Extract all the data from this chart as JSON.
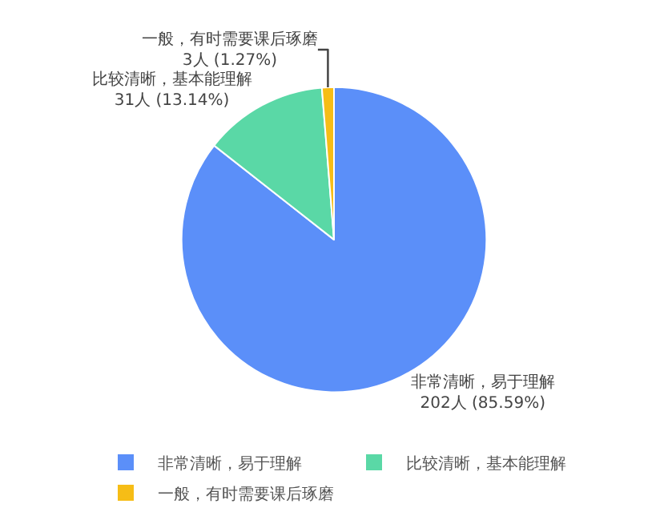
{
  "chart_data": {
    "type": "pie",
    "categories": [
      "非常清晰，易于理解",
      "比较清晰，基本能理解",
      "一般，有时需要课后琢磨"
    ],
    "values": [
      202,
      31,
      3
    ],
    "value_labels": [
      "202人 (85.59%)",
      "31人 (13.14%)",
      "3人 (1.27%)"
    ],
    "colors": [
      "#5b8ff9",
      "#5ad8a6",
      "#f6bd16"
    ],
    "legend": "bottom"
  }
}
